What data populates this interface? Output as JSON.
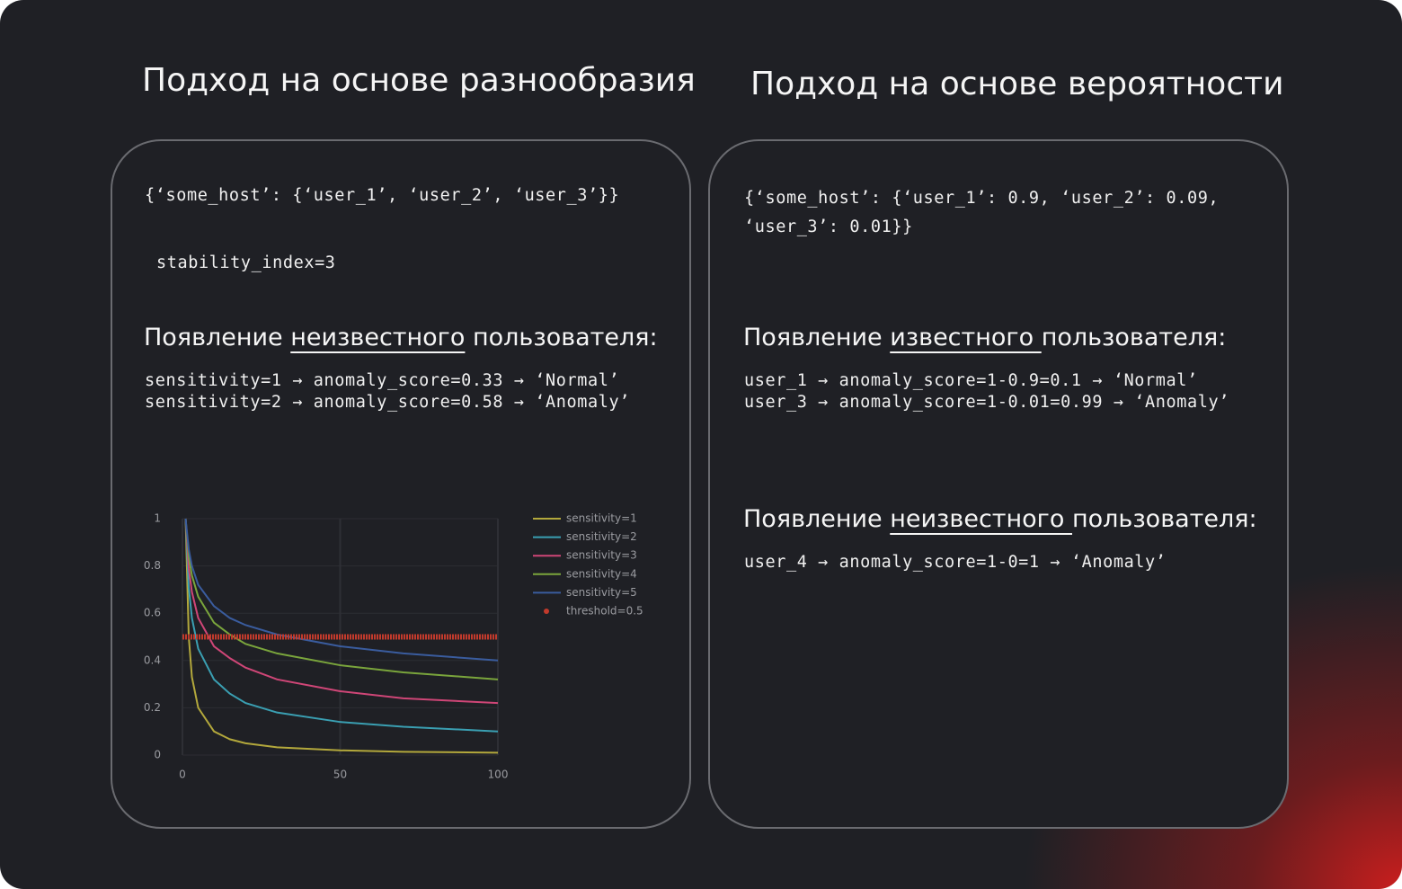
{
  "left": {
    "title": "Подход на основе разнообразия",
    "code": "{‘some_host’: {‘user_1’, ‘user_2’, ‘user_3’}}",
    "stability": "stability_index=3",
    "heading": {
      "before": "Появление ",
      "underlined": "неизвестного",
      "after": " пользователя:"
    },
    "lines": [
      "sensitivity=1 → anomaly_score=0.33 → ‘Normal’",
      "sensitivity=2 → anomaly_score=0.58 → ‘Anomaly’"
    ]
  },
  "right": {
    "title": "Подход на основе вероятности",
    "code": [
      "{‘some_host’: {‘user_1’: 0.9, ‘user_2’: 0.09,",
      "‘user_3’: 0.01}}"
    ],
    "sections": [
      {
        "heading": {
          "before": "Появление ",
          "underlined": "известного ",
          "after": "пользователя:"
        },
        "lines": [
          "user_1 → anomaly_score=1-0.9=0.1 → ‘Normal’",
          "user_3 → anomaly_score=1-0.01=0.99 → ‘Anomaly’"
        ]
      },
      {
        "heading": {
          "before": "Появление ",
          "underlined": "неизвестного ",
          "after": "пользователя:"
        },
        "lines": [
          "user_4 → anomaly_score=1-0=1 → ‘Anomaly’"
        ]
      }
    ]
  },
  "chart_data": {
    "type": "line",
    "x": [
      1,
      2,
      3,
      5,
      10,
      15,
      20,
      30,
      50,
      70,
      100
    ],
    "series": [
      {
        "name": "sensitivity=1",
        "color": "#b3a83c",
        "values": [
          1,
          0.5,
          0.33,
          0.2,
          0.1,
          0.067,
          0.05,
          0.033,
          0.02,
          0.014,
          0.01
        ]
      },
      {
        "name": "sensitivity=2",
        "color": "#3a9fb2",
        "values": [
          1,
          0.71,
          0.58,
          0.45,
          0.32,
          0.26,
          0.22,
          0.18,
          0.14,
          0.12,
          0.1
        ]
      },
      {
        "name": "sensitivity=3",
        "color": "#cf4677",
        "values": [
          1,
          0.79,
          0.69,
          0.58,
          0.46,
          0.41,
          0.37,
          0.32,
          0.27,
          0.24,
          0.22
        ]
      },
      {
        "name": "sensitivity=4",
        "color": "#7aa53c",
        "values": [
          1,
          0.84,
          0.76,
          0.67,
          0.56,
          0.51,
          0.47,
          0.43,
          0.38,
          0.35,
          0.32
        ]
      },
      {
        "name": "sensitivity=5",
        "color": "#3a5c9e",
        "values": [
          1,
          0.87,
          0.8,
          0.72,
          0.63,
          0.58,
          0.55,
          0.51,
          0.46,
          0.43,
          0.4
        ]
      }
    ],
    "threshold": {
      "name": "threshold=0.5",
      "color": "#c23a2c",
      "value": 0.5
    },
    "xlim": [
      0,
      100
    ],
    "ylim": [
      0,
      1
    ],
    "xticks": [
      0,
      50,
      100
    ],
    "yticks": [
      0,
      0.2,
      0.4,
      0.6,
      0.8,
      1
    ],
    "grid": true
  }
}
